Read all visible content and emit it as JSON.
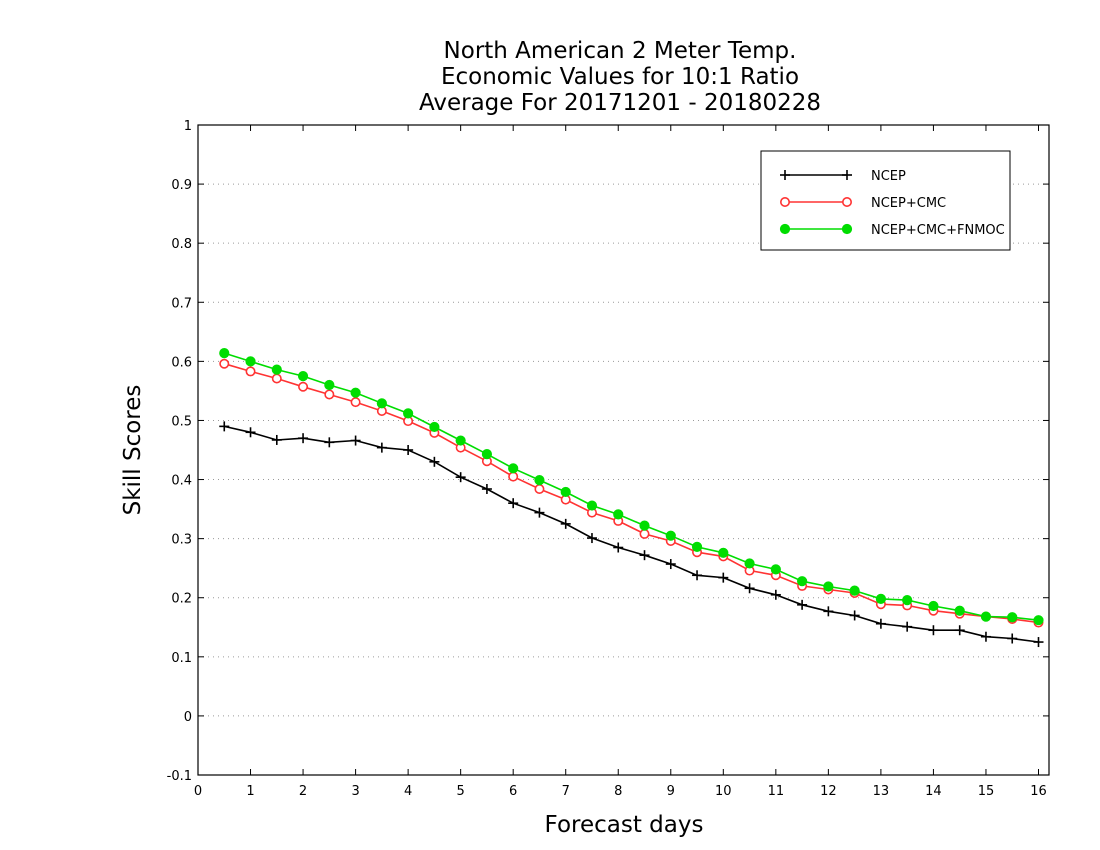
{
  "chart_data": {
    "type": "line",
    "title_lines": [
      "North American 2 Meter Temp.",
      "Economic Values for 10:1 Ratio",
      "Average For 20171201 - 20180228"
    ],
    "xlabel": "Forecast days",
    "ylabel": "Skill Scores",
    "xlim": [
      0,
      16.2
    ],
    "ylim": [
      -0.1,
      1
    ],
    "xticks": [
      0,
      1,
      2,
      3,
      4,
      5,
      6,
      7,
      8,
      9,
      10,
      11,
      12,
      13,
      14,
      15,
      16
    ],
    "xtick_labels": [
      "0",
      "1",
      "2",
      "3",
      "4",
      "5",
      "6",
      "7",
      "8",
      "9",
      "10",
      "11",
      "12",
      "13",
      "14",
      "15",
      "16"
    ],
    "yticks": [
      -0.1,
      0,
      0.1,
      0.2,
      0.3,
      0.4,
      0.5,
      0.6,
      0.7,
      0.8,
      0.9,
      1
    ],
    "ytick_labels": [
      "-0.1",
      "0",
      "0.1",
      "0.2",
      "0.3",
      "0.4",
      "0.5",
      "0.6",
      "0.7",
      "0.8",
      "0.9",
      "1"
    ],
    "grid": "horizontal-dotted",
    "legend_position": "top-right",
    "x": [
      0.5,
      1,
      1.5,
      2,
      2.5,
      3,
      3.5,
      4,
      4.5,
      5,
      5.5,
      6,
      6.5,
      7,
      7.5,
      8,
      8.5,
      9,
      9.5,
      10,
      10.5,
      11,
      11.5,
      12,
      12.5,
      13,
      13.5,
      14,
      14.5,
      15,
      15.5,
      16
    ],
    "series": [
      {
        "name": "NCEP",
        "color": "#000000",
        "marker": "plus",
        "values": [
          0.49,
          0.48,
          0.467,
          0.47,
          0.463,
          0.466,
          0.454,
          0.45,
          0.43,
          0.404,
          0.384,
          0.36,
          0.344,
          0.325,
          0.301,
          0.285,
          0.272,
          0.257,
          0.238,
          0.234,
          0.216,
          0.205,
          0.188,
          0.177,
          0.17,
          0.156,
          0.151,
          0.145,
          0.145,
          0.134,
          0.131,
          0.125
        ]
      },
      {
        "name": "NCEP+CMC",
        "color": "#ff3333",
        "marker": "open-circle",
        "values": [
          0.596,
          0.583,
          0.571,
          0.557,
          0.544,
          0.531,
          0.516,
          0.499,
          0.479,
          0.454,
          0.431,
          0.405,
          0.384,
          0.366,
          0.344,
          0.33,
          0.308,
          0.296,
          0.277,
          0.27,
          0.246,
          0.238,
          0.22,
          0.214,
          0.208,
          0.189,
          0.187,
          0.178,
          0.173,
          0.168,
          0.164,
          0.158
        ]
      },
      {
        "name": "NCEP+CMC+FNMOC",
        "color": "#00dd00",
        "marker": "filled-circle",
        "values": [
          0.614,
          0.6,
          0.586,
          0.575,
          0.56,
          0.547,
          0.529,
          0.512,
          0.489,
          0.466,
          0.443,
          0.419,
          0.399,
          0.379,
          0.356,
          0.341,
          0.322,
          0.305,
          0.286,
          0.276,
          0.258,
          0.248,
          0.228,
          0.219,
          0.212,
          0.198,
          0.196,
          0.186,
          0.178,
          0.168,
          0.167,
          0.162
        ]
      }
    ]
  }
}
